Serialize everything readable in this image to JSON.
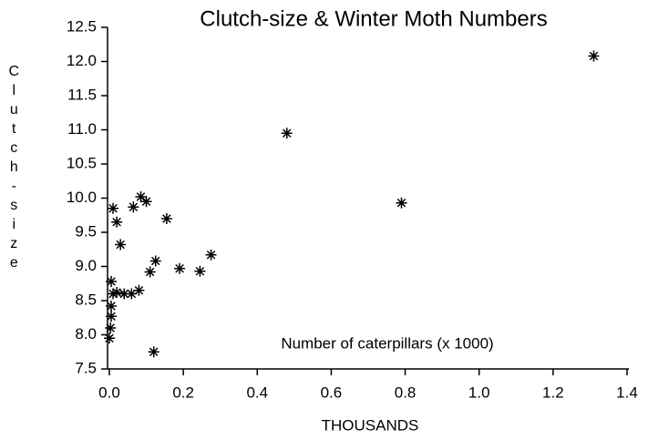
{
  "chart_data": {
    "type": "scatter",
    "title": "Clutch-size & Winter Moth Numbers",
    "x_label": "THOUSANDS",
    "y_label": "Clutch-size",
    "annotation": "Number of caterpillars (x 1000)",
    "x": [
      1.31,
      0.48,
      0.79,
      0.01,
      0.02,
      0.03,
      0.065,
      0.085,
      0.1,
      0.155,
      0.005,
      0.01,
      0.02,
      0.04,
      0.06,
      0.08,
      0.11,
      0.125,
      0.19,
      0.245,
      0.275,
      0.005,
      0.005,
      0.003,
      0.0,
      0.12
    ],
    "values": [
      12.08,
      10.95,
      9.93,
      9.85,
      9.65,
      9.32,
      9.87,
      10.02,
      9.95,
      9.7,
      8.78,
      8.6,
      8.62,
      8.6,
      8.6,
      8.65,
      8.92,
      9.08,
      8.97,
      8.93,
      9.17,
      8.42,
      8.27,
      8.1,
      7.95,
      7.75
    ],
    "color": "#000000",
    "xlim": [
      0,
      1.4
    ],
    "ylim": [
      7.5,
      12.5
    ],
    "xticks": [
      {
        "value": 0,
        "label": "0.0"
      },
      0.2,
      0.4,
      0.6,
      0.8,
      {
        "value": 1,
        "label": "1.0"
      },
      1.2,
      1.4
    ],
    "yticks": [
      7.5,
      {
        "value": 8,
        "label": "8.0"
      },
      8.5,
      {
        "value": 9,
        "label": "9.0"
      },
      9.5,
      {
        "value": 10,
        "label": "10.0"
      },
      10.5,
      {
        "value": 11,
        "label": "11.0"
      },
      11.5,
      {
        "value": 12,
        "label": "12.0"
      },
      12.5
    ]
  }
}
